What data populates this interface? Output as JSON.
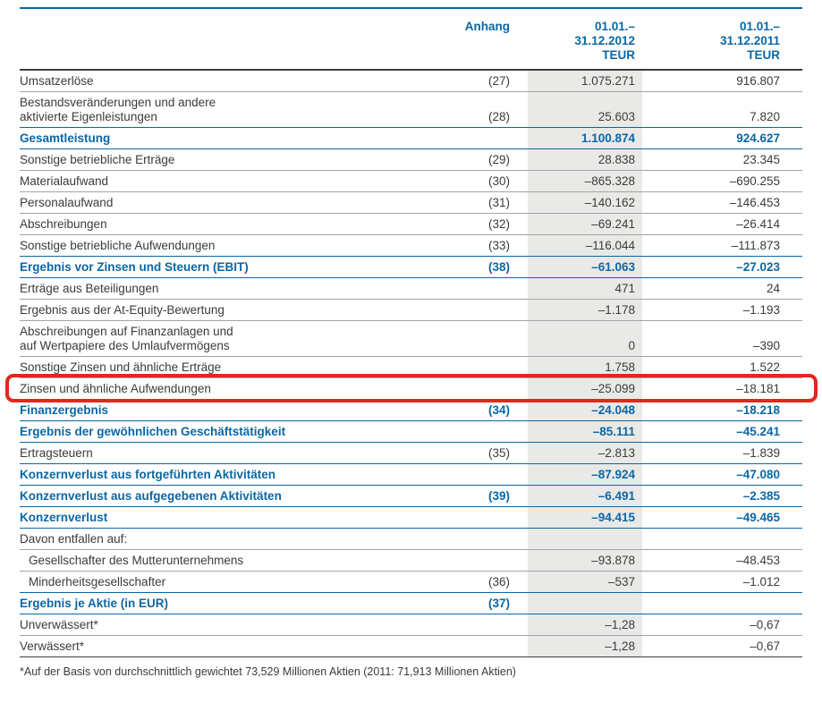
{
  "page": {
    "accent_blue": "#0a67a5",
    "text_color": "#3b3b3a",
    "shade_color": "#e9e9e7",
    "highlight_color": "#e2271e",
    "separator_color": "#a3a3a3",
    "rule_dark_color": "#3c3c3b"
  },
  "header": {
    "anhang": "Anhang",
    "col2012": "01.01.–\n31.12.2012\nTEUR",
    "col2011": "01.01.–\n31.12.2011\nTEUR"
  },
  "rows": [
    {
      "label": "Umsatzerlöse",
      "anhang": "(27)",
      "v2012": "1.075.271",
      "v2011": "916.807"
    },
    {
      "label": "Bestandsveränderungen und andere\naktivierte Eigenleistungen",
      "anhang": "(28)",
      "v2012": "25.603",
      "v2011": "7.820"
    },
    {
      "label": "Gesamtleistung",
      "anhang": "",
      "v2012": "1.100.874",
      "v2011": "924.627",
      "blue": true
    },
    {
      "label": "Sonstige betriebliche Erträge",
      "anhang": "(29)",
      "v2012": "28.838",
      "v2011": "23.345"
    },
    {
      "label": "Materialaufwand",
      "anhang": "(30)",
      "v2012": "–865.328",
      "v2011": "–690.255"
    },
    {
      "label": "Personalaufwand",
      "anhang": "(31)",
      "v2012": "–140.162",
      "v2011": "–146.453"
    },
    {
      "label": "Abschreibungen",
      "anhang": "(32)",
      "v2012": "–69.241",
      "v2011": "–26.414"
    },
    {
      "label": "Sonstige betriebliche Aufwendungen",
      "anhang": "(33)",
      "v2012": "–116.044",
      "v2011": "–111.873"
    },
    {
      "label": "Ergebnis vor Zinsen und Steuern (EBIT)",
      "anhang": "(38)",
      "v2012": "–61.063",
      "v2011": "–27.023",
      "blue": true
    },
    {
      "label": "Erträge aus Beteiligungen",
      "anhang": "",
      "v2012": "471",
      "v2011": "24"
    },
    {
      "label": "Ergebnis aus der At-Equity-Bewertung",
      "anhang": "",
      "v2012": "–1.178",
      "v2011": "–1.193"
    },
    {
      "label": "Abschreibungen auf Finanzanlagen und\nauf Wertpapiere des Umlaufvermögens",
      "anhang": "",
      "v2012": "0",
      "v2011": "–390"
    },
    {
      "label": "Sonstige Zinsen und ähnliche Erträge",
      "anhang": "",
      "v2012": "1.758",
      "v2011": "1.522"
    },
    {
      "label": "Zinsen und ähnliche Aufwendungen",
      "anhang": "",
      "v2012": "–25.099",
      "v2011": "–18.181",
      "highlight": true
    },
    {
      "label": "Finanzergebnis",
      "anhang": "(34)",
      "v2012": "–24.048",
      "v2011": "–18.218",
      "blue": true
    },
    {
      "label": "Ergebnis der gewöhnlichen Geschäftstätigkeit",
      "anhang": "",
      "v2012": "–85.111",
      "v2011": "–45.241",
      "blue": true
    },
    {
      "label": "Ertragsteuern",
      "anhang": "(35)",
      "v2012": "–2.813",
      "v2011": "–1.839"
    },
    {
      "label": "Konzernverlust aus fortgeführten Aktivitäten",
      "anhang": "",
      "v2012": "–87.924",
      "v2011": "–47.080",
      "blue": true
    },
    {
      "label": "Konzernverlust aus aufgegebenen Aktivitäten",
      "anhang": "(39)",
      "v2012": "–6.491",
      "v2011": "–2.385",
      "blue": true
    },
    {
      "label": "Konzernverlust",
      "anhang": "",
      "v2012": "–94.415",
      "v2011": "–49.465",
      "blue": true
    },
    {
      "label": "Davon entfallen auf:",
      "anhang": "",
      "v2012": "",
      "v2011": ""
    },
    {
      "label": "Gesellschafter des Mutterunternehmens",
      "anhang": "",
      "v2012": "–93.878",
      "v2011": "–48.453",
      "indent": true
    },
    {
      "label": "Minderheitsgesellschafter",
      "anhang": "(36)",
      "v2012": "–537",
      "v2011": "–1.012",
      "indent": true
    },
    {
      "label": "Ergebnis je Aktie (in EUR)",
      "anhang": "(37)",
      "v2012": "",
      "v2011": "",
      "blue": true
    },
    {
      "label": "Unverwässert*",
      "anhang": "",
      "v2012": "–1,28",
      "v2011": "–0,67"
    },
    {
      "label": "Verwässert*",
      "anhang": "",
      "v2012": "–1,28",
      "v2011": "–0,67"
    }
  ],
  "footnote": "*Auf der Basis von durchschnittlich gewichtet 73,529 Millionen Aktien (2011: 71,913 Millionen Aktien)"
}
